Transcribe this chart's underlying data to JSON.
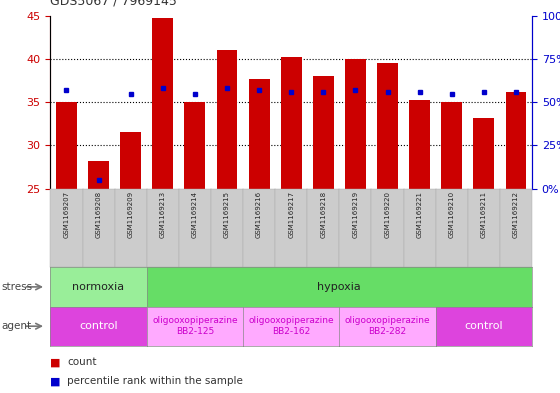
{
  "title": "GDS5067 / 7969145",
  "samples": [
    "GSM1169207",
    "GSM1169208",
    "GSM1169209",
    "GSM1169213",
    "GSM1169214",
    "GSM1169215",
    "GSM1169216",
    "GSM1169217",
    "GSM1169218",
    "GSM1169219",
    "GSM1169220",
    "GSM1169221",
    "GSM1169210",
    "GSM1169211",
    "GSM1169212"
  ],
  "counts": [
    35.0,
    28.2,
    31.6,
    44.7,
    35.0,
    41.0,
    37.7,
    40.2,
    38.0,
    40.0,
    39.5,
    35.2,
    35.0,
    33.2,
    36.2
  ],
  "percentile_ranks": [
    57,
    5,
    55,
    58,
    55,
    58,
    57,
    56,
    56,
    57,
    56,
    56,
    55,
    56,
    56
  ],
  "ylim_left": [
    25,
    45
  ],
  "ylim_right": [
    0,
    100
  ],
  "yticks_left": [
    25,
    30,
    35,
    40,
    45
  ],
  "yticks_right": [
    0,
    25,
    50,
    75,
    100
  ],
  "bar_color": "#cc0000",
  "dot_color": "#0000cc",
  "baseline": 25,
  "stress_groups": [
    {
      "label": "normoxia",
      "start": 0,
      "end": 3,
      "color": "#99ee99"
    },
    {
      "label": "hypoxia",
      "start": 3,
      "end": 15,
      "color": "#66dd66"
    }
  ],
  "agent_groups": [
    {
      "label": "control",
      "start": 0,
      "end": 3,
      "color": "#dd44dd",
      "text_color": "#ffffff",
      "font_size": 8
    },
    {
      "label": "oligooxopiperazine\nBB2-125",
      "start": 3,
      "end": 6,
      "color": "#ffaaff",
      "text_color": "#cc00cc",
      "font_size": 6.5
    },
    {
      "label": "oligooxopiperazine\nBB2-162",
      "start": 6,
      "end": 9,
      "color": "#ffaaff",
      "text_color": "#cc00cc",
      "font_size": 6.5
    },
    {
      "label": "oligooxopiperazine\nBB2-282",
      "start": 9,
      "end": 12,
      "color": "#ffaaff",
      "text_color": "#cc00cc",
      "font_size": 6.5
    },
    {
      "label": "control",
      "start": 12,
      "end": 15,
      "color": "#dd44dd",
      "text_color": "#ffffff",
      "font_size": 8
    }
  ],
  "grid_color": "#000000",
  "background_color": "#ffffff",
  "left_axis_color": "#cc0000",
  "right_axis_color": "#0000cc",
  "tick_label_bg": "#cccccc"
}
